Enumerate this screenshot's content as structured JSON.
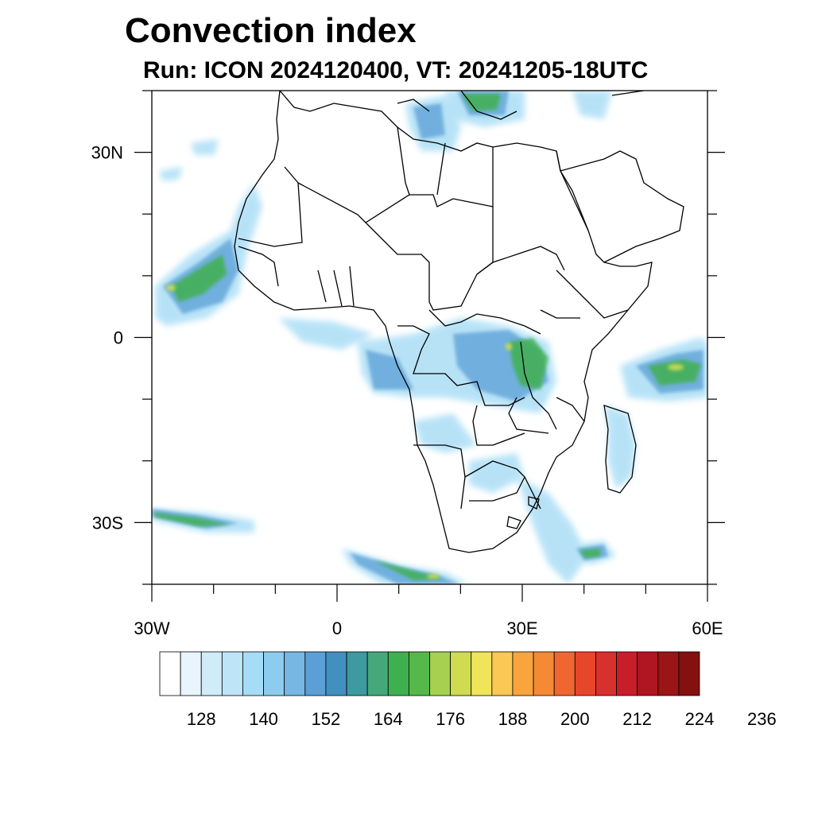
{
  "header": {
    "title": "Convection index",
    "subtitle": "Run: ICON 2024120400,  VT: 20241205-18UTC"
  },
  "map": {
    "region": "Africa",
    "lon_range": [
      -30,
      60
    ],
    "lat_range": [
      -40,
      40
    ],
    "x_ticks": [
      {
        "value": -30,
        "label": "30W"
      },
      {
        "value": 0,
        "label": "0"
      },
      {
        "value": 30,
        "label": "30E"
      },
      {
        "value": 60,
        "label": "60E"
      }
    ],
    "y_ticks": [
      {
        "value": 30,
        "label": "30N"
      },
      {
        "value": 0,
        "label": "0"
      },
      {
        "value": -30,
        "label": "30S"
      }
    ]
  },
  "colorbar": {
    "colors": [
      "#ffffff",
      "#e8f5fc",
      "#d0ecf9",
      "#bde4f7",
      "#a6dcf5",
      "#8ccdef",
      "#76b8e3",
      "#5a9fd6",
      "#4290c0",
      "#3c9aa0",
      "#45a87a",
      "#3fb050",
      "#55b84a",
      "#a6d050",
      "#cfdc50",
      "#f0e55a",
      "#fbc855",
      "#f8a53e",
      "#f58a35",
      "#ef6630",
      "#e8462b",
      "#d8302d",
      "#c81e2a",
      "#b01522",
      "#9a1515",
      "#851010"
    ],
    "labels": [
      "128",
      "140",
      "152",
      "164",
      "176",
      "188",
      "200",
      "212",
      "224",
      "236"
    ]
  }
}
